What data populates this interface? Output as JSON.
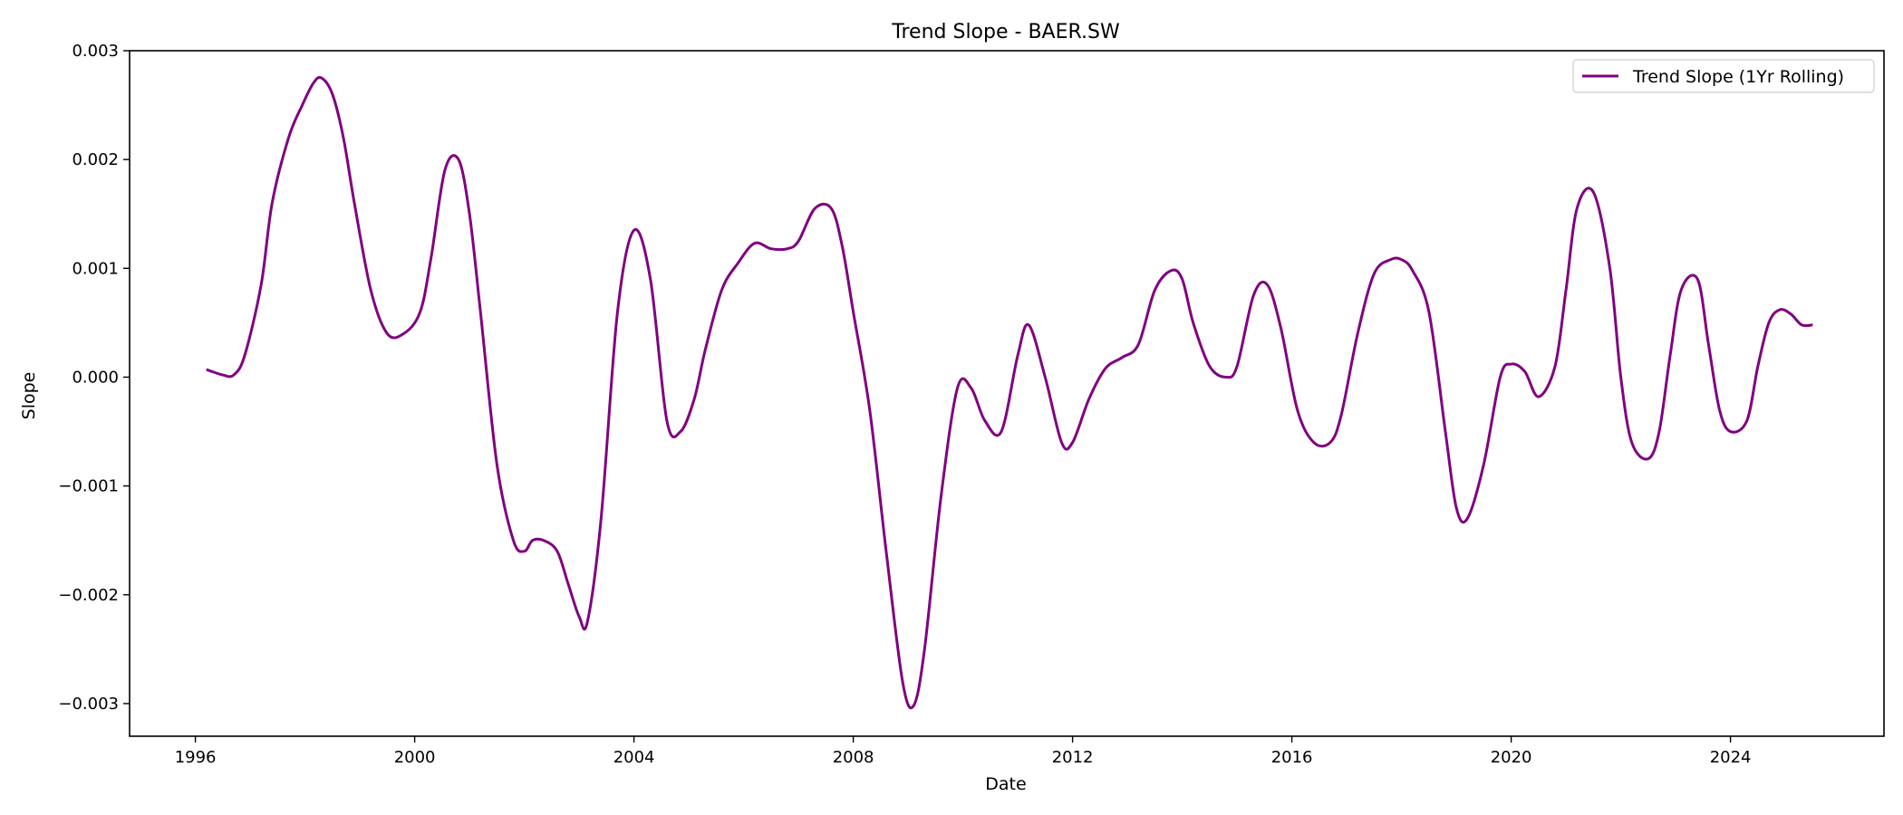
{
  "chart_data": {
    "type": "line",
    "title": "Trend Slope - BAER.SW",
    "xlabel": "Date",
    "ylabel": "Slope",
    "xlim": [
      1994.8,
      2026.8
    ],
    "ylim": [
      -0.0033,
      0.003
    ],
    "x_ticks": [
      1996,
      2000,
      2004,
      2008,
      2012,
      2016,
      2020,
      2024
    ],
    "x_tick_labels": [
      "1996",
      "2000",
      "2004",
      "2008",
      "2012",
      "2016",
      "2020",
      "2024"
    ],
    "y_ticks": [
      -0.003,
      -0.002,
      -0.001,
      0.0,
      0.001,
      0.002,
      0.003
    ],
    "y_tick_labels": [
      "−0.003",
      "−0.002",
      "−0.001",
      "0.000",
      "0.001",
      "0.002",
      "0.003"
    ],
    "grid": false,
    "legend_position": "top-right",
    "series": [
      {
        "name": "Trend Slope (1Yr Rolling)",
        "color": "#800080",
        "x": [
          1996.2,
          1996.5,
          1996.7,
          1996.9,
          1997.2,
          1997.4,
          1997.7,
          1997.95,
          1998.15,
          1998.3,
          1998.5,
          1998.7,
          1998.9,
          1999.2,
          1999.5,
          1999.8,
          2000.1,
          2000.3,
          2000.55,
          2000.8,
          2001.0,
          2001.2,
          2001.5,
          2001.8,
          2002.0,
          2002.15,
          2002.35,
          2002.6,
          2002.8,
          2003.0,
          2003.15,
          2003.4,
          2003.7,
          2004.0,
          2004.3,
          2004.6,
          2004.85,
          2005.1,
          2005.3,
          2005.6,
          2005.9,
          2006.2,
          2006.5,
          2006.8,
          2007.0,
          2007.3,
          2007.6,
          2007.8,
          2008.0,
          2008.3,
          2008.6,
          2008.9,
          2009.1,
          2009.3,
          2009.6,
          2009.9,
          2010.15,
          2010.4,
          2010.7,
          2011.0,
          2011.2,
          2011.5,
          2011.8,
          2012.0,
          2012.3,
          2012.6,
          2012.9,
          2013.2,
          2013.5,
          2013.8,
          2014.0,
          2014.2,
          2014.5,
          2014.8,
          2015.0,
          2015.3,
          2015.55,
          2015.8,
          2016.1,
          2016.4,
          2016.7,
          2016.9,
          2017.2,
          2017.5,
          2017.8,
          2018.0,
          2018.2,
          2018.5,
          2018.8,
          2019.0,
          2019.2,
          2019.5,
          2019.8,
          2020.0,
          2020.25,
          2020.5,
          2020.8,
          2021.0,
          2021.2,
          2021.5,
          2021.8,
          2022.0,
          2022.2,
          2022.5,
          2022.7,
          2022.9,
          2023.1,
          2023.4,
          2023.6,
          2023.8,
          2024.0,
          2024.3,
          2024.5,
          2024.7,
          2024.9,
          2025.1,
          2025.3,
          2025.5
        ],
        "y": [
          7e-05,
          2e-05,
          2e-05,
          0.0002,
          0.00085,
          0.0016,
          0.0022,
          0.0025,
          0.0027,
          0.00275,
          0.0026,
          0.0022,
          0.0016,
          0.0008,
          0.0004,
          0.0004,
          0.0006,
          0.0011,
          0.0019,
          0.002,
          0.0015,
          0.0006,
          -0.0008,
          -0.0015,
          -0.0016,
          -0.0015,
          -0.0015,
          -0.0016,
          -0.0019,
          -0.0022,
          -0.00225,
          -0.0013,
          0.0006,
          0.00135,
          0.0009,
          -0.0004,
          -0.0005,
          -0.0002,
          0.00025,
          0.0008,
          0.00105,
          0.00123,
          0.00118,
          0.00118,
          0.00125,
          0.00155,
          0.00155,
          0.0012,
          0.0006,
          -0.0003,
          -0.0016,
          -0.0028,
          -0.00302,
          -0.0025,
          -0.0011,
          -0.0001,
          -0.0001,
          -0.0004,
          -0.0005,
          0.0002,
          0.00048,
          0.0,
          -0.0006,
          -0.0006,
          -0.0002,
          8e-05,
          0.00018,
          0.0003,
          0.0008,
          0.00098,
          0.0009,
          0.0005,
          0.0001,
          0.0,
          0.0001,
          0.00075,
          0.00085,
          0.00045,
          -0.0003,
          -0.0006,
          -0.0006,
          -0.00035,
          0.0004,
          0.00095,
          0.00108,
          0.00108,
          0.00098,
          0.0006,
          -0.0005,
          -0.0012,
          -0.0013,
          -0.0008,
          0.0,
          0.00012,
          5e-05,
          -0.00018,
          0.0001,
          0.0008,
          0.00155,
          0.0017,
          0.001,
          0.0,
          -0.0006,
          -0.00075,
          -0.0005,
          0.0002,
          0.0008,
          0.0009,
          0.0003,
          -0.0003,
          -0.0005,
          -0.0004,
          0.0001,
          0.0005,
          0.00062,
          0.00058,
          0.00048,
          0.00048
        ]
      }
    ]
  }
}
